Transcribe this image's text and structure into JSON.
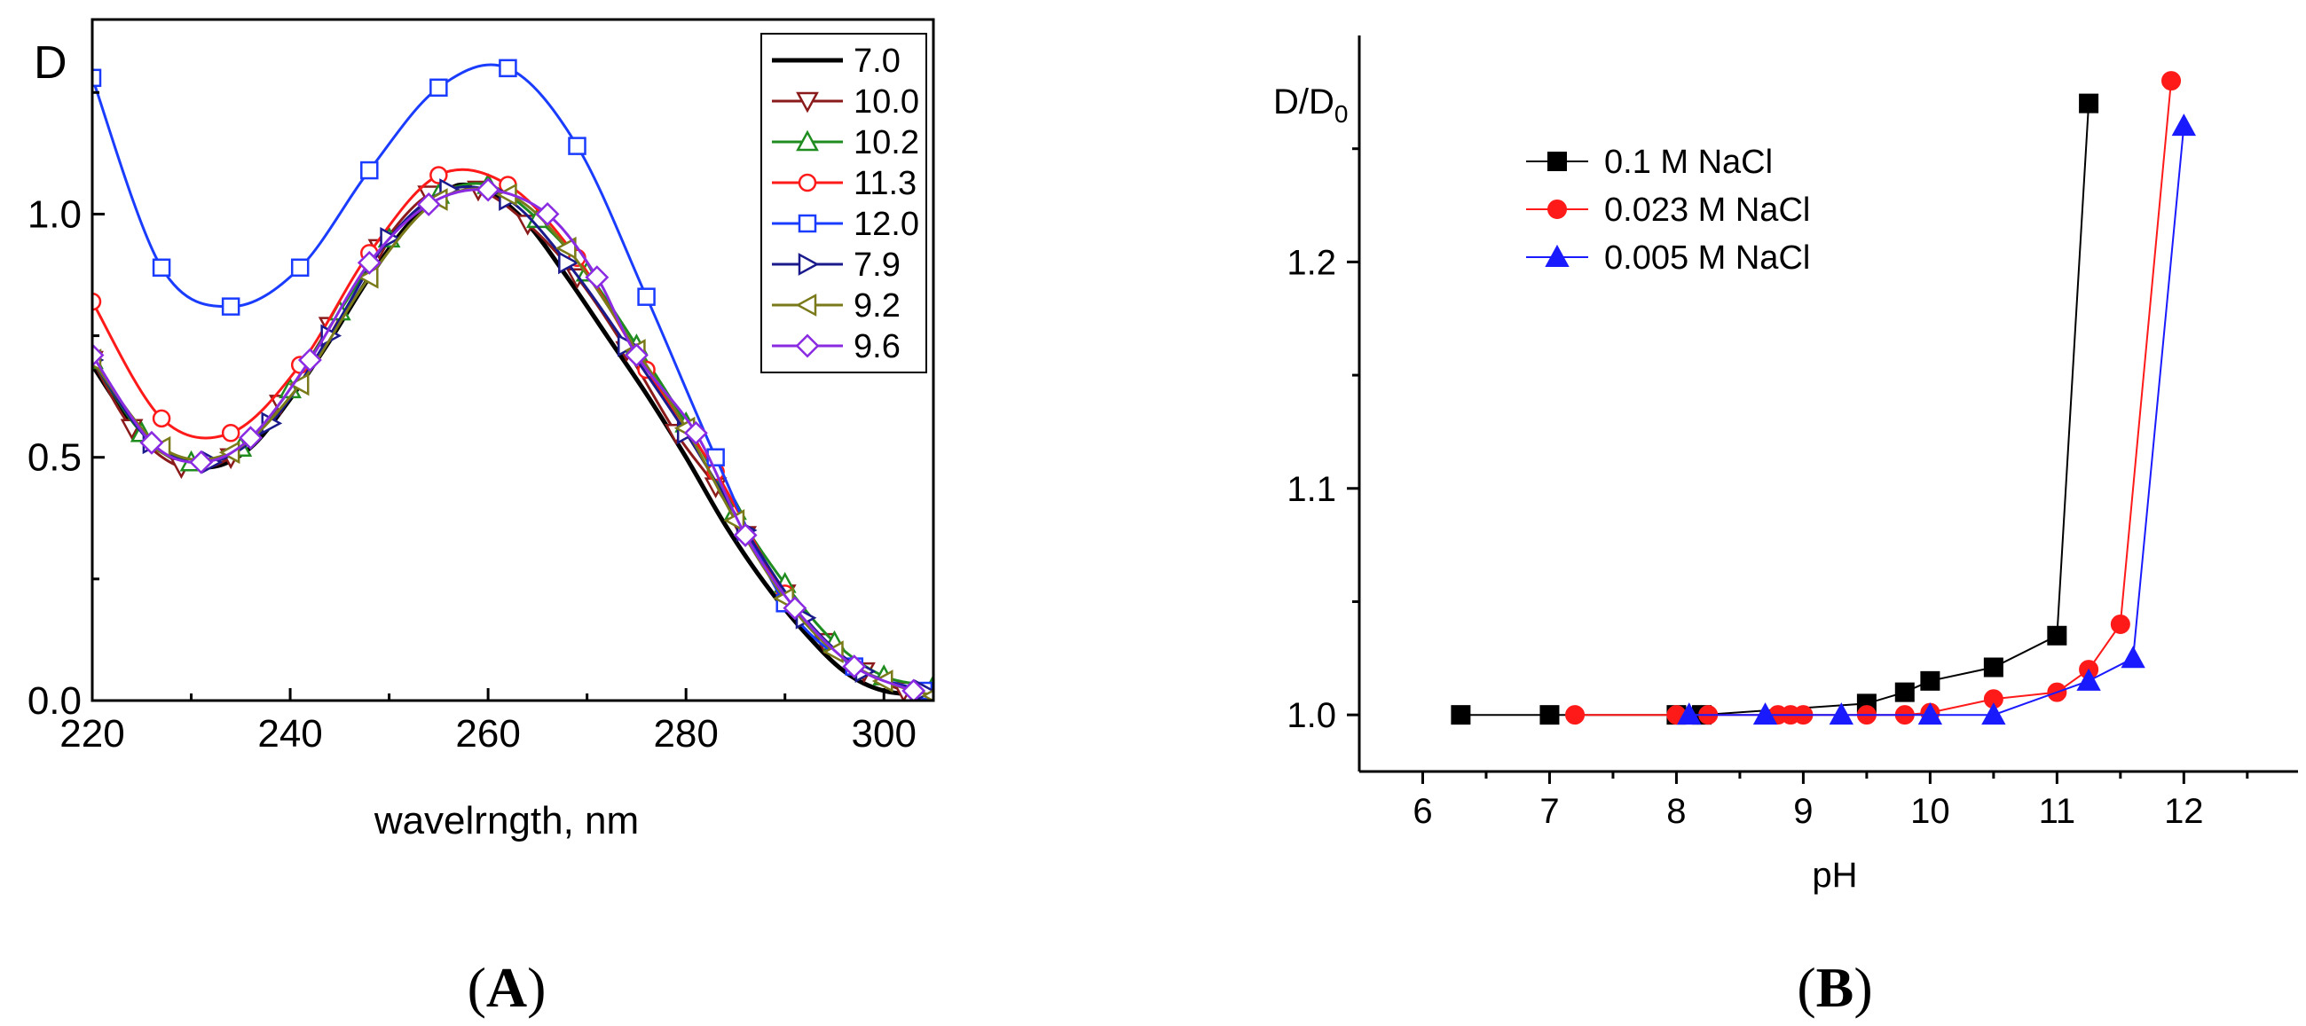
{
  "chart_data": [
    {
      "panel": "A",
      "type": "line",
      "panel_label_open": "(",
      "panel_label_letter": "A",
      "panel_label_close": ")",
      "ylabel": "D",
      "xlabel": "wavelrngth, nm",
      "xlim": [
        220,
        305
      ],
      "ylim": [
        0.0,
        1.4
      ],
      "xticks": [
        "220",
        "240",
        "260",
        "280",
        "300"
      ],
      "xtick_values": [
        220,
        240,
        260,
        280,
        300
      ],
      "yticks": [
        "0.0",
        "0.5",
        "1.0"
      ],
      "ytick_values": [
        0.0,
        0.5,
        1.0
      ],
      "legend_position": "top-right",
      "series": [
        {
          "name": "7.0",
          "color": "#000000",
          "marker": "none",
          "x": [
            220,
            224,
            228,
            232,
            236,
            240,
            244,
            248,
            252,
            256,
            258,
            260,
            264,
            268,
            272,
            276,
            280,
            284,
            288,
            292,
            296,
            300,
            305
          ],
          "y": [
            0.69,
            0.57,
            0.5,
            0.48,
            0.52,
            0.62,
            0.74,
            0.87,
            0.98,
            1.05,
            1.06,
            1.05,
            0.98,
            0.87,
            0.75,
            0.63,
            0.5,
            0.36,
            0.24,
            0.14,
            0.06,
            0.02,
            0.01
          ]
        },
        {
          "name": "10.0",
          "color": "#8b1a1a",
          "marker": "triangle-down",
          "x": [
            220,
            224,
            229,
            234,
            239,
            244,
            249,
            254,
            259,
            264,
            269,
            274,
            279,
            283,
            286,
            290,
            294,
            298,
            302,
            305
          ],
          "y": [
            0.7,
            0.56,
            0.48,
            0.5,
            0.61,
            0.77,
            0.93,
            1.04,
            1.05,
            0.98,
            0.87,
            0.72,
            0.55,
            0.44,
            0.34,
            0.22,
            0.12,
            0.06,
            0.02,
            0.01
          ]
        },
        {
          "name": "10.2",
          "color": "#1e8c1e",
          "marker": "triangle-up",
          "x": [
            220,
            225,
            230,
            235,
            240,
            245,
            250,
            255,
            260,
            265,
            270,
            275,
            280,
            285,
            290,
            295,
            300,
            305
          ],
          "y": [
            0.7,
            0.55,
            0.49,
            0.52,
            0.64,
            0.8,
            0.95,
            1.04,
            1.06,
            0.99,
            0.88,
            0.73,
            0.57,
            0.39,
            0.24,
            0.12,
            0.05,
            0.03
          ]
        },
        {
          "name": "11.3",
          "color": "#ff1a1a",
          "marker": "circle",
          "x": [
            220,
            227,
            234,
            241,
            248,
            255,
            262,
            269,
            276,
            283,
            290,
            297,
            305
          ],
          "y": [
            0.82,
            0.58,
            0.55,
            0.69,
            0.92,
            1.08,
            1.06,
            0.91,
            0.68,
            0.47,
            0.22,
            0.07,
            0.01
          ]
        },
        {
          "name": "12.0",
          "color": "#1a3cff",
          "marker": "square",
          "x": [
            220,
            227,
            234,
            241,
            248,
            255,
            262,
            269,
            276,
            283,
            290,
            297,
            304
          ],
          "y": [
            1.28,
            0.89,
            0.81,
            0.89,
            1.09,
            1.26,
            1.3,
            1.14,
            0.83,
            0.5,
            0.2,
            0.07,
            0.02
          ]
        },
        {
          "name": "7.9",
          "color": "#1a1a8c",
          "marker": "triangle-right",
          "x": [
            220,
            226,
            232,
            238,
            244,
            250,
            256,
            262,
            268,
            274,
            280,
            286,
            292,
            298,
            304
          ],
          "y": [
            0.7,
            0.53,
            0.49,
            0.57,
            0.75,
            0.95,
            1.05,
            1.03,
            0.9,
            0.73,
            0.55,
            0.35,
            0.17,
            0.06,
            0.02
          ]
        },
        {
          "name": "9.2",
          "color": "#7a7a1a",
          "marker": "triangle-left",
          "x": [
            220,
            227,
            234,
            241,
            248,
            255,
            262,
            268,
            275,
            280,
            285,
            290,
            295,
            300,
            305
          ],
          "y": [
            0.7,
            0.52,
            0.51,
            0.65,
            0.87,
            1.03,
            1.04,
            0.93,
            0.72,
            0.56,
            0.37,
            0.21,
            0.1,
            0.04,
            0.01
          ]
        },
        {
          "name": "9.6",
          "color": "#8a2be2",
          "marker": "diamond",
          "x": [
            220,
            226,
            231,
            236,
            242,
            248,
            254,
            260,
            266,
            271,
            275,
            281,
            286,
            291,
            297,
            303
          ],
          "y": [
            0.71,
            0.53,
            0.49,
            0.54,
            0.7,
            0.9,
            1.02,
            1.05,
            1.0,
            0.87,
            0.71,
            0.55,
            0.34,
            0.19,
            0.07,
            0.02
          ]
        }
      ]
    },
    {
      "panel": "B",
      "type": "line",
      "panel_label_open": "(",
      "panel_label_letter": "B",
      "panel_label_close": ")",
      "ylabel": "D/D",
      "ylabel_sub": "0",
      "xlabel": "pH",
      "xlim": [
        5.5,
        12.9
      ],
      "ylim": [
        0.975,
        1.3
      ],
      "xticks": [
        "6",
        "7",
        "8",
        "9",
        "10",
        "11",
        "12"
      ],
      "xtick_values": [
        6,
        7,
        8,
        9,
        10,
        11,
        12
      ],
      "yticks": [
        "1.0",
        "1.1",
        "1.2"
      ],
      "ytick_values": [
        1.0,
        1.1,
        1.2
      ],
      "legend_position": "top-left",
      "series": [
        {
          "name": "0.1 M NaCl",
          "color": "#000000",
          "marker": "square",
          "x": [
            6.3,
            7.0,
            8.0,
            8.2,
            9.5,
            9.8,
            10.0,
            10.5,
            11.0,
            11.25
          ],
          "y": [
            1.0,
            1.0,
            1.0,
            1.0,
            1.005,
            1.01,
            1.015,
            1.021,
            1.035,
            1.27
          ]
        },
        {
          "name": "0.023 M NaCl",
          "color": "#ff1a1a",
          "marker": "circle",
          "x": [
            7.2,
            8.0,
            8.25,
            8.8,
            8.9,
            9.0,
            9.5,
            9.8,
            10.0,
            10.5,
            11.0,
            11.25,
            11.5,
            11.9
          ],
          "y": [
            1.0,
            1.0,
            1.0,
            1.0,
            1.0,
            1.0,
            1.0,
            1.0,
            1.001,
            1.007,
            1.01,
            1.02,
            1.04,
            1.28
          ]
        },
        {
          "name": "0.005 M NaCl",
          "color": "#1a1aff",
          "marker": "triangle-up",
          "x": [
            8.1,
            8.7,
            9.3,
            10.0,
            10.5,
            11.25,
            11.6,
            12.0
          ],
          "y": [
            1.0,
            1.0,
            1.0,
            1.0,
            1.0,
            1.015,
            1.025,
            1.26
          ]
        }
      ]
    }
  ]
}
